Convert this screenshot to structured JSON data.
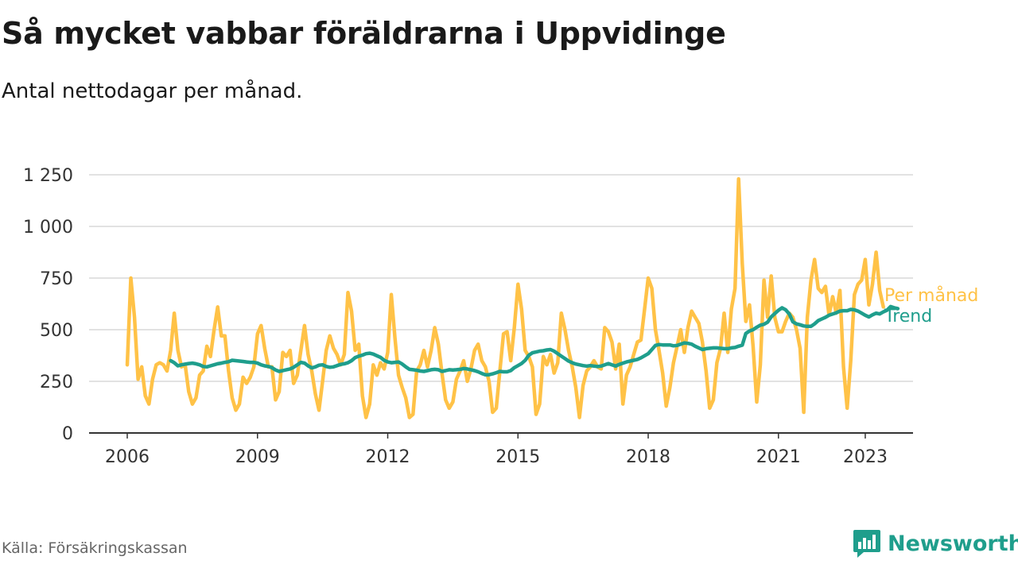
{
  "header": {
    "title": "Så mycket vabbar föräldrarna i Uppvidinge",
    "subtitle": "Antal nettodagar per månad."
  },
  "footer": {
    "source": "Källa: Försäkringskassan",
    "brand": "Newsworthy",
    "brand_icon": "bar-chart-bubble-icon"
  },
  "colors": {
    "monthly": "#ffc247",
    "trend": "#1f9e8c",
    "grid": "#d9d9d9",
    "axis": "#333333",
    "brand": "#1f9e8c"
  },
  "chart_data": {
    "type": "line",
    "title": "Så mycket vabbar föräldrarna i Uppvidinge",
    "subtitle": "Antal nettodagar per månad.",
    "xlabel": "",
    "ylabel": "",
    "xlim": [
      2006.0,
      2024.1
    ],
    "ylim": [
      0,
      1250
    ],
    "yticks": [
      0,
      250,
      500,
      750,
      1000,
      1250
    ],
    "ytick_labels": [
      "0",
      "250",
      "500",
      "750",
      "1 000",
      "1 250"
    ],
    "xticks": [
      2006,
      2009,
      2012,
      2015,
      2018,
      2021,
      2023
    ],
    "xtick_labels": [
      "2006",
      "2009",
      "2012",
      "2015",
      "2018",
      "2021",
      "2023"
    ],
    "grid": true,
    "legend": "labels at right end of lines",
    "series": [
      {
        "name": "Per månad",
        "x_start": 2006.0,
        "step": 0.08333,
        "values": [
          330,
          750,
          560,
          260,
          320,
          180,
          140,
          260,
          330,
          340,
          330,
          300,
          400,
          580,
          400,
          320,
          330,
          200,
          140,
          170,
          280,
          300,
          420,
          370,
          500,
          610,
          470,
          470,
          300,
          170,
          110,
          140,
          270,
          240,
          270,
          320,
          480,
          520,
          410,
          320,
          320,
          160,
          200,
          390,
          370,
          400,
          240,
          280,
          400,
          520,
          380,
          300,
          190,
          110,
          250,
          400,
          470,
          410,
          380,
          330,
          380,
          680,
          590,
          400,
          430,
          180,
          75,
          140,
          330,
          280,
          340,
          310,
          390,
          670,
          460,
          280,
          220,
          170,
          75,
          90,
          300,
          330,
          400,
          320,
          400,
          510,
          430,
          290,
          160,
          120,
          150,
          260,
          300,
          350,
          250,
          310,
          400,
          430,
          350,
          320,
          250,
          100,
          120,
          300,
          480,
          490,
          350,
          510,
          720,
          600,
          400,
          370,
          320,
          90,
          140,
          370,
          330,
          380,
          290,
          340,
          580,
          500,
          400,
          320,
          220,
          75,
          230,
          300,
          320,
          350,
          320,
          310,
          510,
          490,
          440,
          310,
          430,
          140,
          280,
          320,
          380,
          440,
          450,
          600,
          750,
          700,
          500,
          400,
          290,
          130,
          220,
          340,
          420,
          500,
          390,
          510,
          590,
          560,
          530,
          440,
          300,
          120,
          160,
          340,
          410,
          580,
          390,
          600,
          700,
          1230,
          820,
          540,
          620,
          420,
          150,
          330,
          740,
          560,
          760,
          560,
          490,
          490,
          540,
          580,
          560,
          500,
          410,
          100,
          560,
          740,
          840,
          700,
          680,
          710,
          570,
          660,
          580,
          690,
          320,
          120,
          350,
          670,
          720,
          740,
          840,
          620,
          720,
          875,
          690,
          610
        ]
      },
      {
        "name": "Trend",
        "x_start": 2007.0,
        "step": 0.08333,
        "values": [
          350,
          340,
          325,
          330,
          333,
          336,
          338,
          335,
          330,
          322,
          320,
          325,
          330,
          335,
          338,
          342,
          345,
          352,
          350,
          348,
          346,
          344,
          342,
          342,
          338,
          330,
          325,
          322,
          316,
          305,
          298,
          302,
          306,
          310,
          318,
          330,
          342,
          338,
          325,
          315,
          320,
          328,
          330,
          322,
          318,
          320,
          326,
          332,
          335,
          340,
          350,
          365,
          372,
          377,
          384,
          386,
          382,
          374,
          366,
          352,
          344,
          340,
          342,
          344,
          334,
          320,
          308,
          306,
          304,
          300,
          298,
          302,
          306,
          308,
          306,
          298,
          302,
          306,
          305,
          306,
          308,
          312,
          310,
          306,
          302,
          296,
          288,
          282,
          282,
          286,
          292,
          298,
          296,
          296,
          302,
          316,
          326,
          336,
          352,
          376,
          388,
          392,
          396,
          398,
          402,
          404,
          396,
          384,
          372,
          360,
          348,
          340,
          334,
          330,
          326,
          324,
          326,
          324,
          322,
          324,
          330,
          336,
          330,
          324,
          332,
          338,
          344,
          348,
          352,
          356,
          364,
          374,
          384,
          404,
          424,
          428,
          426,
          426,
          426,
          422,
          424,
          430,
          436,
          434,
          430,
          420,
          412,
          404,
          408,
          410,
          412,
          412,
          410,
          408,
          408,
          412,
          414,
          420,
          425,
          482,
          494,
          500,
          512,
          522,
          526,
          536,
          562,
          578,
          594,
          606,
          596,
          576,
          538,
          528,
          524,
          518,
          516,
          516,
          528,
          544,
          552,
          560,
          570,
          576,
          582,
          590,
          592,
          592,
          598,
          596,
          590,
          580,
          570,
          562,
          572,
          580,
          576,
          586,
          594,
          612,
          606,
          602
        ]
      }
    ]
  }
}
